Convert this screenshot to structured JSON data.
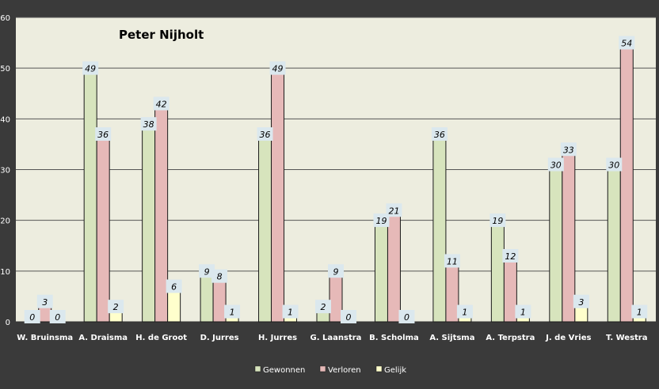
{
  "chart_data": {
    "type": "bar",
    "title": "Peter Nijholt",
    "xlabel": "",
    "ylabel": "",
    "ylim": [
      0,
      60
    ],
    "yticks": [
      "0",
      "10",
      "20",
      "30",
      "40",
      "50",
      "60"
    ],
    "grid": true,
    "legend_position": "bottom",
    "categories": [
      "W. Bruinsma",
      "A. Draisma",
      "H. de Groot",
      "D. Jurres",
      "H. Jurres",
      "G. Laanstra",
      "B. Scholma",
      "A. Sijtsma",
      "A. Terpstra",
      "J. de Vries",
      "T. Westra"
    ],
    "series": [
      {
        "name": "Gewonnen",
        "color": "#d7e4bd",
        "values": [
          0,
          49,
          38,
          9,
          36,
          2,
          19,
          36,
          19,
          30,
          30
        ]
      },
      {
        "name": "Verloren",
        "color": "#e6b9b8",
        "values": [
          3,
          36,
          42,
          8,
          49,
          9,
          21,
          11,
          12,
          33,
          54
        ]
      },
      {
        "name": "Gelijk",
        "color": "#ffffcc",
        "values": [
          0,
          2,
          6,
          1,
          1,
          0,
          0,
          1,
          1,
          3,
          1
        ]
      }
    ]
  },
  "colors": {
    "outer_background": "#3a3a3a",
    "plot_background": "#ededdf",
    "gridline": "#555555",
    "axis_text": "#ffffff",
    "label_box": "#dbe8ee"
  }
}
